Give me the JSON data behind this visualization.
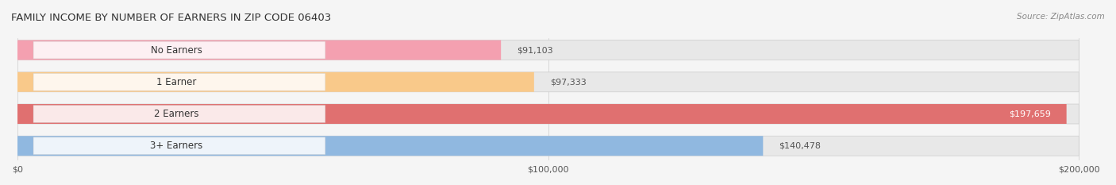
{
  "title": "FAMILY INCOME BY NUMBER OF EARNERS IN ZIP CODE 06403",
  "source": "Source: ZipAtlas.com",
  "categories": [
    "No Earners",
    "1 Earner",
    "2 Earners",
    "3+ Earners"
  ],
  "values": [
    91103,
    97333,
    197659,
    140478
  ],
  "bar_colors": [
    "#f4a0b0",
    "#f9c98a",
    "#e07070",
    "#90b8e0"
  ],
  "bar_edge_colors": [
    "#e08090",
    "#e8a860",
    "#c05050",
    "#6090c0"
  ],
  "label_colors": [
    "#555555",
    "#555555",
    "#ffffff",
    "#ffffff"
  ],
  "value_labels": [
    "$91,103",
    "$97,333",
    "$197,659",
    "$140,478"
  ],
  "xlim": [
    0,
    200000
  ],
  "xticks": [
    0,
    100000,
    200000
  ],
  "xtick_labels": [
    "$0",
    "$100,000",
    "$200,000"
  ],
  "bg_color": "#f0f0f0",
  "bar_bg_color": "#e8e8e8",
  "figsize": [
    14.06,
    2.33
  ],
  "dpi": 100
}
